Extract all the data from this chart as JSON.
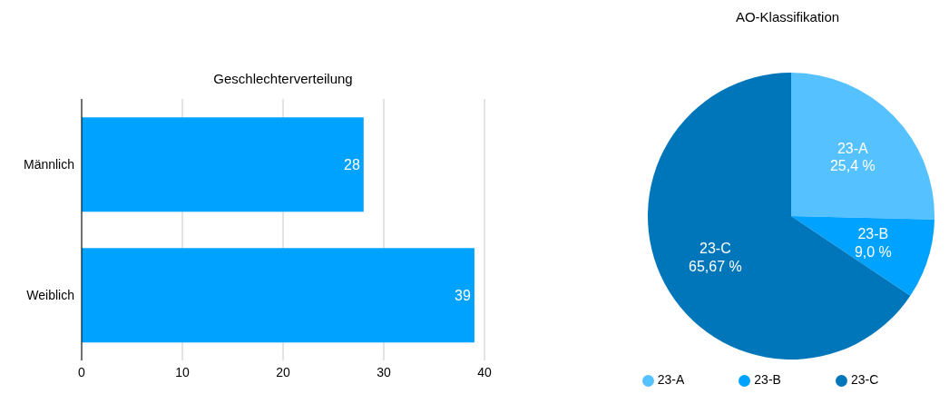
{
  "chart_data": [
    {
      "type": "bar",
      "title": "Geschlechterverteilung",
      "orientation": "horizontal",
      "categories": [
        "Männlich",
        "Weiblich"
      ],
      "values": [
        28,
        39
      ],
      "color": "#00a2ff",
      "xlim": [
        0,
        40
      ],
      "xticks": [
        0,
        10,
        20,
        30,
        40
      ],
      "grid": "x",
      "data_labels": true
    },
    {
      "type": "pie",
      "title": "AO-Klassifikation",
      "categories": [
        "23-A",
        "23-B",
        "23-C"
      ],
      "values": [
        25.4,
        9.0,
        65.67
      ],
      "value_labels": [
        "25,4 %",
        "9,0 %",
        "65,67 %"
      ],
      "colors": [
        "#56c1ff",
        "#00a2ff",
        "#0076ba"
      ],
      "legend": "bottom"
    }
  ]
}
